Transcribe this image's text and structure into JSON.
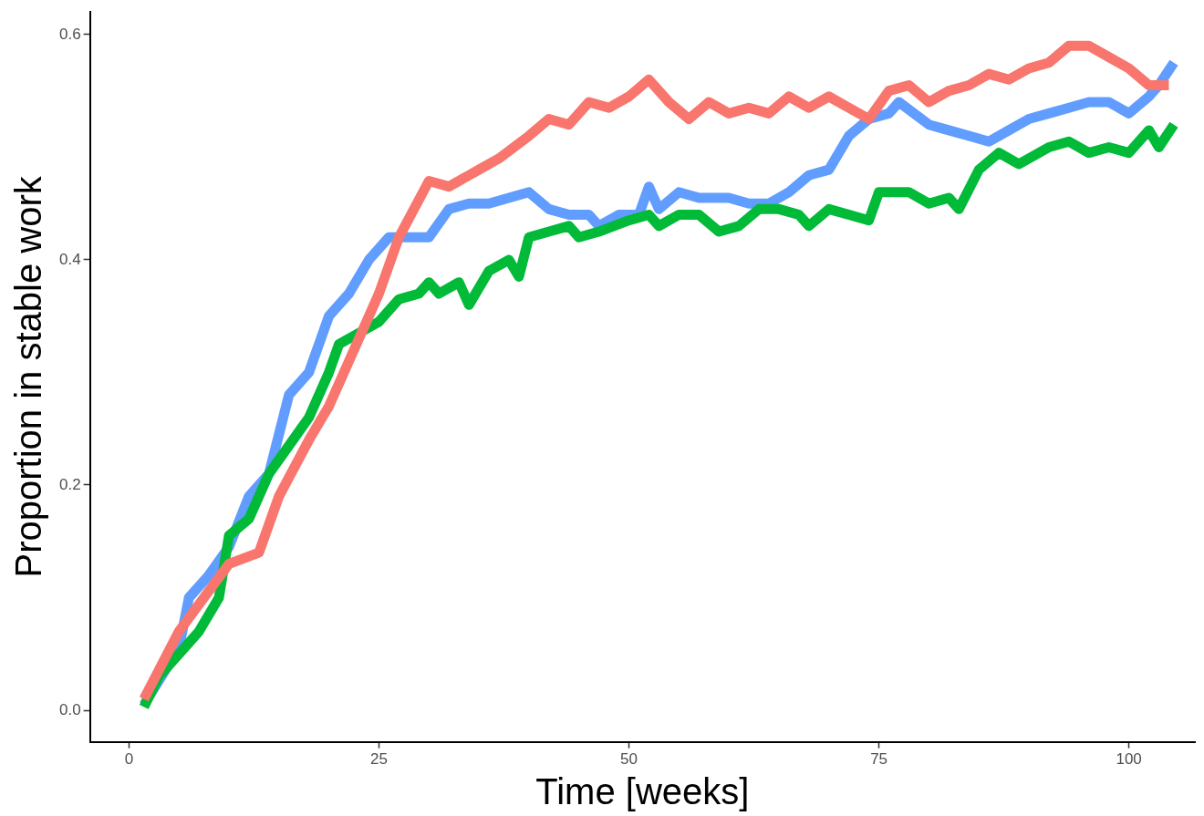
{
  "chart_data": {
    "type": "line",
    "xlabel": "Time [weeks]",
    "ylabel": "Proportion in stable work",
    "xlim": [
      -3.9,
      106.6
    ],
    "ylim": [
      -0.028,
      0.62
    ],
    "xticks": [
      0,
      25,
      50,
      75,
      100
    ],
    "yticks": [
      {
        "value": 0,
        "label": "0.0"
      },
      0.2,
      0.4,
      0.6
    ],
    "grid": false,
    "legend": false,
    "marker": "none",
    "line_style": "solid",
    "series": [
      {
        "color": "#f8766d",
        "x": [
          1.5,
          5,
          10,
          13,
          15,
          18,
          20,
          22,
          25,
          27,
          30,
          32,
          35,
          37,
          40,
          42,
          44,
          46,
          48,
          50,
          52,
          54,
          56,
          58,
          60,
          62,
          64,
          66,
          68,
          70,
          72,
          74,
          76,
          78,
          80,
          82,
          84,
          86,
          88,
          90,
          92,
          94,
          96,
          98,
          100,
          102,
          104
        ],
        "values": [
          0.01,
          0.07,
          0.13,
          0.14,
          0.19,
          0.24,
          0.27,
          0.31,
          0.37,
          0.42,
          0.47,
          0.465,
          0.48,
          0.49,
          0.51,
          0.525,
          0.52,
          0.54,
          0.535,
          0.545,
          0.56,
          0.54,
          0.525,
          0.54,
          0.53,
          0.535,
          0.53,
          0.545,
          0.535,
          0.545,
          0.535,
          0.525,
          0.55,
          0.555,
          0.54,
          0.55,
          0.555,
          0.565,
          0.56,
          0.57,
          0.575,
          0.59,
          0.59,
          0.58,
          0.57,
          0.555,
          0.555
        ]
      },
      {
        "color": "#00ba38",
        "x": [
          1.5,
          3,
          5,
          7,
          9,
          10,
          12,
          14,
          16,
          18,
          20,
          21,
          23,
          25,
          27,
          29,
          30,
          31,
          33,
          34,
          36,
          38,
          39,
          40,
          42,
          44,
          45,
          47,
          50,
          52,
          53,
          55,
          57,
          59,
          61,
          63,
          65,
          67,
          68,
          70,
          72,
          74,
          75,
          78,
          80,
          82,
          83,
          85,
          87,
          89,
          92,
          94,
          96,
          98,
          100,
          102,
          103,
          104.5
        ],
        "values": [
          0.003,
          0.03,
          0.05,
          0.07,
          0.1,
          0.155,
          0.17,
          0.21,
          0.235,
          0.26,
          0.3,
          0.325,
          0.335,
          0.345,
          0.365,
          0.37,
          0.38,
          0.37,
          0.38,
          0.36,
          0.39,
          0.4,
          0.385,
          0.42,
          0.425,
          0.43,
          0.42,
          0.425,
          0.435,
          0.44,
          0.43,
          0.44,
          0.44,
          0.425,
          0.43,
          0.445,
          0.445,
          0.44,
          0.43,
          0.445,
          0.44,
          0.435,
          0.46,
          0.46,
          0.45,
          0.455,
          0.445,
          0.48,
          0.495,
          0.485,
          0.5,
          0.505,
          0.495,
          0.5,
          0.495,
          0.515,
          0.5,
          0.52
        ]
      },
      {
        "color": "#619cff",
        "x": [
          1.5,
          5,
          6,
          8,
          10,
          12,
          14,
          16,
          18,
          20,
          22,
          24,
          26,
          28,
          30,
          32,
          34,
          36,
          38,
          40,
          42,
          44,
          46,
          47,
          49,
          51,
          52,
          53,
          55,
          57,
          60,
          62,
          64,
          66,
          68,
          70,
          72,
          74,
          76,
          77,
          80,
          82,
          84,
          86,
          88,
          90,
          92,
          94,
          96,
          98,
          100,
          102,
          103,
          104.5
        ],
        "values": [
          0.005,
          0.055,
          0.1,
          0.12,
          0.145,
          0.19,
          0.21,
          0.28,
          0.3,
          0.35,
          0.37,
          0.4,
          0.42,
          0.42,
          0.42,
          0.445,
          0.45,
          0.45,
          0.455,
          0.46,
          0.445,
          0.44,
          0.44,
          0.43,
          0.44,
          0.44,
          0.465,
          0.445,
          0.46,
          0.455,
          0.455,
          0.45,
          0.45,
          0.46,
          0.475,
          0.48,
          0.51,
          0.525,
          0.53,
          0.54,
          0.52,
          0.515,
          0.51,
          0.505,
          0.515,
          0.525,
          0.53,
          0.535,
          0.54,
          0.54,
          0.53,
          0.545,
          0.555,
          0.575
        ]
      }
    ]
  }
}
